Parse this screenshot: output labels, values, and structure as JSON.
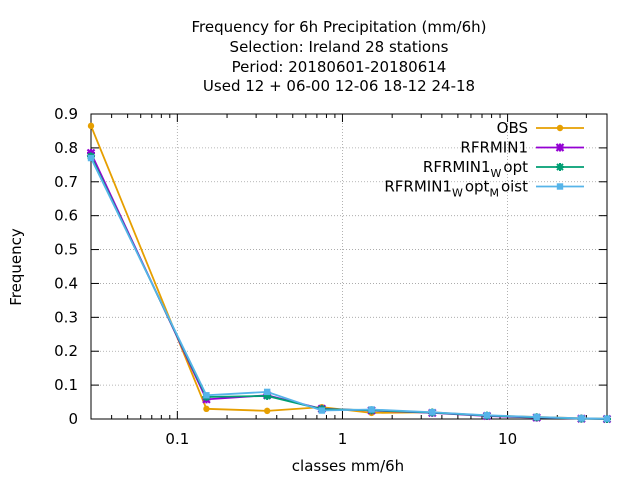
{
  "chart_data": {
    "type": "line",
    "title_lines": [
      "Frequency  for 6h Precipitation (mm/6h)",
      "Selection: Ireland      28 stations",
      "Period: 20180601-20180614",
      "Used  12 + 06-00 12-06 18-12 24-18"
    ],
    "xlabel": "classes mm/6h",
    "ylabel": "Frequency",
    "x_scale": "log",
    "xlim": [
      0.03,
      40
    ],
    "ylim": [
      0,
      0.9
    ],
    "x_ticks": [
      0.1,
      1,
      10
    ],
    "x_tick_labels": [
      "0.1",
      "1",
      "10"
    ],
    "y_ticks": [
      0,
      0.1,
      0.2,
      0.3,
      0.4,
      0.5,
      0.6,
      0.7,
      0.8,
      0.9
    ],
    "y_tick_labels": [
      "0",
      "0.1",
      "0.2",
      "0.3",
      "0.4",
      "0.5",
      "0.6",
      "0.7",
      "0.8",
      "0.9"
    ],
    "grid": true,
    "legend_position": "top-right",
    "series": [
      {
        "name": "OBS",
        "legend_parts": [
          {
            "text": "OBS",
            "sub": false
          }
        ],
        "color": "#e69f00",
        "marker": "circle",
        "x": [
          0.03,
          0.15,
          0.35,
          0.75,
          1.5,
          3.5,
          7.5,
          15,
          28,
          40
        ],
        "y": [
          0.865,
          0.03,
          0.024,
          0.035,
          0.018,
          0.02,
          0.01,
          0.006,
          0.002,
          0.001
        ]
      },
      {
        "name": "RFRMIN1",
        "legend_parts": [
          {
            "text": "RFRMIN1",
            "sub": false
          }
        ],
        "color": "#9400d3",
        "marker": "cross",
        "x": [
          0.03,
          0.15,
          0.35,
          0.75,
          1.5,
          3.5,
          7.5,
          15,
          28,
          40
        ],
        "y": [
          0.785,
          0.058,
          0.07,
          0.03,
          0.025,
          0.018,
          0.009,
          0.004,
          0.001,
          0.0
        ]
      },
      {
        "name": "RFRMIN1Wopt",
        "legend_parts": [
          {
            "text": "RFRMIN1",
            "sub": false
          },
          {
            "text": "W",
            "sub": true
          },
          {
            "text": "opt",
            "sub": false
          }
        ],
        "color": "#009e73",
        "marker": "star",
        "x": [
          0.03,
          0.15,
          0.35,
          0.75,
          1.5,
          3.5,
          7.5,
          15,
          28,
          40
        ],
        "y": [
          0.775,
          0.065,
          0.068,
          0.029,
          0.026,
          0.019,
          0.01,
          0.005,
          0.001,
          0.0
        ]
      },
      {
        "name": "RFRMIN1WoptMoist",
        "legend_parts": [
          {
            "text": "RFRMIN1",
            "sub": false
          },
          {
            "text": "W",
            "sub": true
          },
          {
            "text": "opt",
            "sub": false
          },
          {
            "text": "M",
            "sub": true
          },
          {
            "text": "oist",
            "sub": false
          }
        ],
        "color": "#56b4e9",
        "marker": "box",
        "x": [
          0.03,
          0.15,
          0.35,
          0.75,
          1.5,
          3.5,
          7.5,
          15,
          28,
          40
        ],
        "y": [
          0.77,
          0.07,
          0.08,
          0.025,
          0.028,
          0.02,
          0.011,
          0.006,
          0.002,
          0.001
        ]
      }
    ]
  }
}
